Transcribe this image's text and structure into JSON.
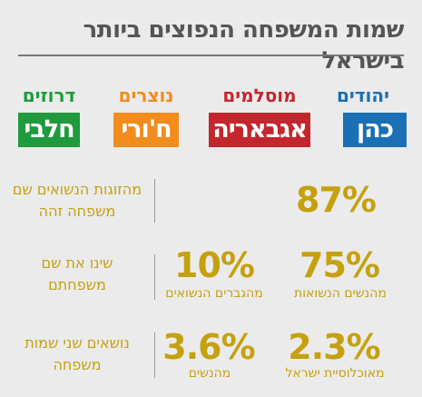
{
  "title": "שמות המשפחה הנפוצים ביותר בישראל",
  "groups": [
    {
      "label": "יהודים",
      "name": "כהן",
      "color": "#1a6fb5"
    },
    {
      "label": "מוסלמים",
      "name": "אגבאריה",
      "color": "#c4262d"
    },
    {
      "label": "נוצרים",
      "name": "ח'ורי",
      "color": "#f28c1c"
    },
    {
      "label": "דרוזים",
      "name": "חלבי",
      "color": "#1f9a3c"
    }
  ],
  "rows": [
    {
      "description": "מהזוגות הנשואים שם משפחה זהה",
      "stats": [
        {
          "value": "87%",
          "caption": ""
        }
      ]
    },
    {
      "description": "שינו את שם משפחתם",
      "stats": [
        {
          "value": "75%",
          "caption": "מהנשים הנשואות"
        },
        {
          "value": "10%",
          "caption": "מהגברים הנשואים"
        }
      ]
    },
    {
      "description": "נושאים שני שמות משפחה",
      "stats": [
        {
          "value": "2.3%",
          "caption": "מאוכלוסיית ישראל"
        },
        {
          "value": "3.6%",
          "caption": "מהנשים"
        }
      ]
    }
  ],
  "chart_data": {
    "type": "table",
    "title": "שמות המשפחה הנפוצים ביותר בישראל",
    "categories": [
      "יהודים",
      "מוסלמים",
      "נוצרים",
      "דרוזים"
    ],
    "most_common_names": [
      "כהן",
      "אגבאריה",
      "ח'ורי",
      "חלבי"
    ],
    "statistics": [
      {
        "label": "מהזוגות הנשואים שם משפחה זהה",
        "values": [
          87
        ]
      },
      {
        "label": "שינו את שם משפחתם",
        "values": [
          75,
          10
        ],
        "sublabels": [
          "מהנשים הנשואות",
          "מהגברים הנשואים"
        ]
      },
      {
        "label": "נושאים שני שמות משפחה",
        "values": [
          2.3,
          3.6
        ],
        "sublabels": [
          "מאוכלוסיית ישראל",
          "מהנשים"
        ]
      }
    ],
    "unit": "%"
  }
}
